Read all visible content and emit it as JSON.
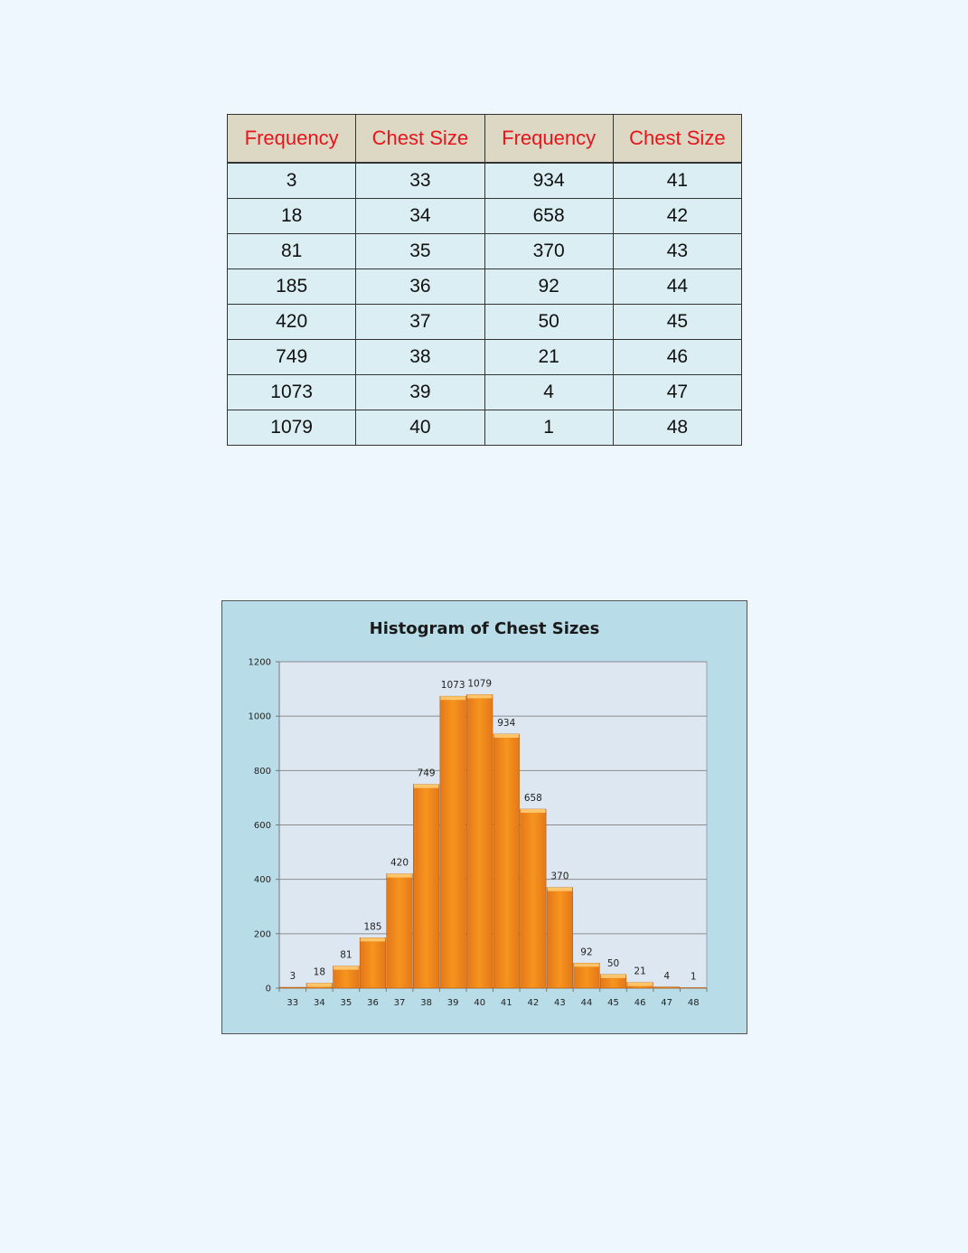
{
  "table": {
    "headers": [
      "Frequency",
      "Chest Size",
      "Frequency",
      "Chest Size"
    ],
    "rows": [
      [
        "3",
        "33",
        "934",
        "41"
      ],
      [
        "18",
        "34",
        "658",
        "42"
      ],
      [
        "81",
        "35",
        "370",
        "43"
      ],
      [
        "185",
        "36",
        "92",
        "44"
      ],
      [
        "420",
        "37",
        "50",
        "45"
      ],
      [
        "749",
        "38",
        "21",
        "46"
      ],
      [
        "1073",
        "39",
        "4",
        "47"
      ],
      [
        "1079",
        "40",
        "1",
        "48"
      ]
    ]
  },
  "chart_data": {
    "type": "bar",
    "title": "Histogram of Chest Sizes",
    "xlabel": "",
    "ylabel": "",
    "categories": [
      "33",
      "34",
      "35",
      "36",
      "37",
      "38",
      "39",
      "40",
      "41",
      "42",
      "43",
      "44",
      "45",
      "46",
      "47",
      "48"
    ],
    "values": [
      3,
      18,
      81,
      185,
      420,
      749,
      1073,
      1079,
      934,
      658,
      370,
      92,
      50,
      21,
      4,
      1
    ],
    "ylim": [
      0,
      1200
    ],
    "yticks": [
      0,
      200,
      400,
      600,
      800,
      1000,
      1200
    ],
    "grid": true,
    "legend": "none",
    "data_labels": true,
    "colors": {
      "bar": "#f7941d",
      "bar_light": "#ffc56b",
      "bar_dark": "#e3781a",
      "plot_background": "#dde7f2",
      "panel_background": "#b8dde8",
      "grid": "#8c8c8c"
    }
  }
}
